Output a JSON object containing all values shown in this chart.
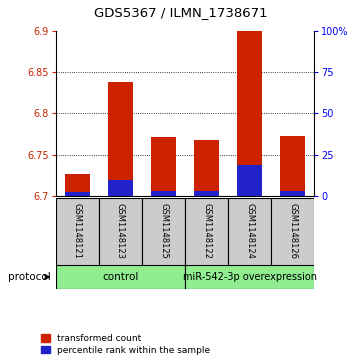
{
  "title": "GDS5367 / ILMN_1738671",
  "samples": [
    "GSM1148121",
    "GSM1148123",
    "GSM1148125",
    "GSM1148122",
    "GSM1148124",
    "GSM1148126"
  ],
  "red_values": [
    6.727,
    6.838,
    6.772,
    6.768,
    6.9,
    6.773
  ],
  "blue_values": [
    6.705,
    6.72,
    6.706,
    6.706,
    6.737,
    6.706
  ],
  "bar_base": 6.7,
  "ylim_left": [
    6.7,
    6.9
  ],
  "ylim_right": [
    0,
    100
  ],
  "yticks_left": [
    6.7,
    6.75,
    6.8,
    6.85,
    6.9
  ],
  "yticks_right": [
    0,
    25,
    50,
    75,
    100
  ],
  "ytick_labels_right": [
    "0",
    "25",
    "50",
    "75",
    "100%"
  ],
  "legend_red": "transformed count",
  "legend_blue": "percentile rank within the sample",
  "bar_width": 0.6,
  "red_color": "#cc2200",
  "blue_color": "#2222cc",
  "gray_bg": "#cccccc",
  "green_bg": "#90ee90",
  "title_fontsize": 9.5,
  "tick_fontsize": 7,
  "sample_fontsize": 6,
  "group_fontsize": 7.5
}
